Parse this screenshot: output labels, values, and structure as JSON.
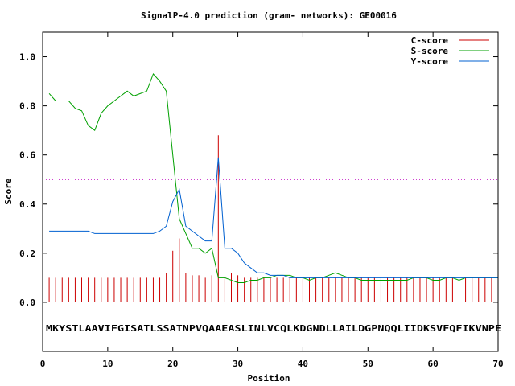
{
  "chart_data": {
    "type": "line",
    "title": "SignalP-4.0 prediction (gram- networks): GE00016",
    "xlabel": "Position",
    "ylabel": "Score",
    "xlim": [
      0,
      70
    ],
    "ylim": [
      -0.2,
      1.1
    ],
    "x_ticks": [
      0,
      10,
      20,
      30,
      40,
      50,
      60,
      70
    ],
    "y_ticks": [
      0.0,
      0.2,
      0.4,
      0.6,
      0.8,
      1.0
    ],
    "x_tick_labels": [
      "0",
      "10",
      "20",
      "30",
      "40",
      "50",
      "60",
      "70"
    ],
    "y_tick_labels": [
      "0.0",
      "0.2",
      "0.4",
      "0.6",
      "0.8",
      "1.0"
    ],
    "threshold": 0.5,
    "threshold_color": "#c000c0",
    "legend_position": "top-right",
    "sequence": "MKYSTLAAVIFGISATLSSATNPVQAAEASLINLVCQLKDGNDLLAILDGPNQQLIIDKSVFQFIKVNPE",
    "series": [
      {
        "name": "C-score",
        "style": "impulses",
        "color": "#cc0000",
        "x": [
          1,
          2,
          3,
          4,
          5,
          6,
          7,
          8,
          9,
          10,
          11,
          12,
          13,
          14,
          15,
          16,
          17,
          18,
          19,
          20,
          21,
          22,
          23,
          24,
          25,
          26,
          27,
          28,
          29,
          30,
          31,
          32,
          33,
          34,
          35,
          36,
          37,
          38,
          39,
          40,
          41,
          42,
          43,
          44,
          45,
          46,
          47,
          48,
          49,
          50,
          51,
          52,
          53,
          54,
          55,
          56,
          57,
          58,
          59,
          60,
          61,
          62,
          63,
          64,
          65,
          66,
          67,
          68,
          69,
          70
        ],
        "values": [
          0.1,
          0.1,
          0.1,
          0.1,
          0.1,
          0.1,
          0.1,
          0.1,
          0.1,
          0.1,
          0.1,
          0.1,
          0.1,
          0.1,
          0.1,
          0.1,
          0.1,
          0.1,
          0.12,
          0.21,
          0.26,
          0.12,
          0.11,
          0.11,
          0.1,
          0.11,
          0.68,
          0.1,
          0.12,
          0.11,
          0.1,
          0.1,
          0.1,
          0.1,
          0.1,
          0.1,
          0.1,
          0.1,
          0.1,
          0.1,
          0.1,
          0.1,
          0.1,
          0.1,
          0.1,
          0.1,
          0.1,
          0.1,
          0.1,
          0.1,
          0.1,
          0.1,
          0.1,
          0.1,
          0.1,
          0.1,
          0.1,
          0.1,
          0.1,
          0.1,
          0.1,
          0.1,
          0.1,
          0.1,
          0.1,
          0.1,
          0.1,
          0.1,
          0.1,
          0.1
        ]
      },
      {
        "name": "S-score",
        "style": "line",
        "color": "#00a000",
        "x": [
          1,
          2,
          3,
          4,
          5,
          6,
          7,
          8,
          9,
          10,
          11,
          12,
          13,
          14,
          15,
          16,
          17,
          18,
          19,
          20,
          21,
          22,
          23,
          24,
          25,
          26,
          27,
          28,
          29,
          30,
          31,
          32,
          33,
          34,
          35,
          36,
          37,
          38,
          39,
          40,
          41,
          42,
          43,
          44,
          45,
          46,
          47,
          48,
          49,
          50,
          51,
          52,
          53,
          54,
          55,
          56,
          57,
          58,
          59,
          60,
          61,
          62,
          63,
          64,
          65,
          66,
          67,
          68,
          69,
          70
        ],
        "values": [
          0.85,
          0.82,
          0.82,
          0.82,
          0.79,
          0.78,
          0.72,
          0.7,
          0.77,
          0.8,
          0.82,
          0.84,
          0.86,
          0.84,
          0.85,
          0.86,
          0.93,
          0.9,
          0.86,
          0.6,
          0.34,
          0.28,
          0.22,
          0.22,
          0.2,
          0.22,
          0.1,
          0.1,
          0.09,
          0.08,
          0.08,
          0.09,
          0.09,
          0.1,
          0.1,
          0.11,
          0.11,
          0.11,
          0.1,
          0.1,
          0.09,
          0.1,
          0.1,
          0.11,
          0.12,
          0.11,
          0.1,
          0.1,
          0.09,
          0.09,
          0.09,
          0.09,
          0.09,
          0.09,
          0.09,
          0.09,
          0.1,
          0.1,
          0.1,
          0.09,
          0.09,
          0.1,
          0.1,
          0.09,
          0.1,
          0.1,
          0.1,
          0.1,
          0.1,
          0.1
        ]
      },
      {
        "name": "Y-score",
        "style": "line",
        "color": "#0060d0",
        "x": [
          1,
          2,
          3,
          4,
          5,
          6,
          7,
          8,
          9,
          10,
          11,
          12,
          13,
          14,
          15,
          16,
          17,
          18,
          19,
          20,
          21,
          22,
          23,
          24,
          25,
          26,
          27,
          28,
          29,
          30,
          31,
          32,
          33,
          34,
          35,
          36,
          37,
          38,
          39,
          40,
          41,
          42,
          43,
          44,
          45,
          46,
          47,
          48,
          49,
          50,
          51,
          52,
          53,
          54,
          55,
          56,
          57,
          58,
          59,
          60,
          61,
          62,
          63,
          64,
          65,
          66,
          67,
          68,
          69,
          70
        ],
        "values": [
          0.29,
          0.29,
          0.29,
          0.29,
          0.29,
          0.29,
          0.29,
          0.28,
          0.28,
          0.28,
          0.28,
          0.28,
          0.28,
          0.28,
          0.28,
          0.28,
          0.28,
          0.29,
          0.31,
          0.41,
          0.46,
          0.31,
          0.29,
          0.27,
          0.25,
          0.25,
          0.59,
          0.22,
          0.22,
          0.2,
          0.16,
          0.14,
          0.12,
          0.12,
          0.11,
          0.11,
          0.11,
          0.1,
          0.1,
          0.1,
          0.1,
          0.1,
          0.1,
          0.1,
          0.1,
          0.1,
          0.1,
          0.1,
          0.1,
          0.1,
          0.1,
          0.1,
          0.1,
          0.1,
          0.1,
          0.1,
          0.1,
          0.1,
          0.1,
          0.1,
          0.1,
          0.1,
          0.1,
          0.1,
          0.1,
          0.1,
          0.1,
          0.1,
          0.1,
          0.1
        ]
      }
    ]
  }
}
